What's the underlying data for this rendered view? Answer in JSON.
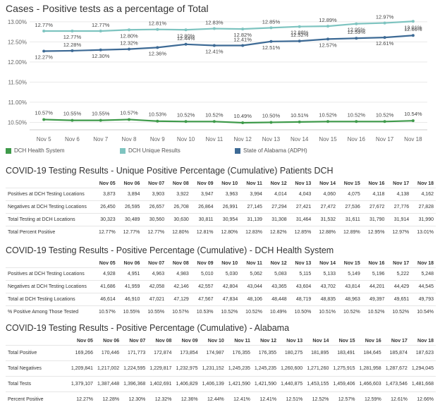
{
  "chart_data": {
    "type": "line",
    "title": "Cases - Positive tests as a percentage of Total",
    "x": [
      "Nov 5",
      "Nov 6",
      "Nov 7",
      "Nov 8",
      "Nov 9",
      "Nov 10",
      "Nov 11",
      "Nov 12",
      "Nov 13",
      "Nov 14",
      "Nov 15",
      "Nov 16",
      "Nov 17",
      "Nov 18"
    ],
    "yticks": [
      "13.00%",
      "12.50%",
      "12.00%",
      "11.50%",
      "11.00%",
      "10.50%"
    ],
    "ylim": [
      10.35,
      13.05
    ],
    "grid": true,
    "legend_position": "bottom",
    "series": [
      {
        "name": "DCH Health System",
        "color": "#3e9a4a",
        "values": [
          10.57,
          10.55,
          10.55,
          10.57,
          10.53,
          10.52,
          10.52,
          10.49,
          10.5,
          10.51,
          10.52,
          10.52,
          10.52,
          10.54
        ],
        "labels": [
          "10.57%",
          "10.55%",
          "10.55%",
          "10.57%",
          "10.53%",
          "10.52%",
          "10.52%",
          "10.49%",
          "10.50%",
          "10.51%",
          "10.52%",
          "10.52%",
          "10.52%",
          "10.54%"
        ]
      },
      {
        "name": "DCH Unique Results",
        "color": "#7ec4c0",
        "values": [
          12.77,
          12.77,
          12.77,
          12.8,
          12.81,
          12.8,
          12.83,
          12.82,
          12.85,
          12.88,
          12.89,
          12.95,
          12.97,
          13.01
        ],
        "labels": [
          "12.77%",
          "12.77%",
          "12.77%",
          "12.80%",
          "12.81%",
          "12.80%",
          "12.83%",
          "12.82%",
          "12.85%",
          "12.88%",
          "12.89%",
          "12.95%",
          "12.97%",
          "13.01%"
        ]
      },
      {
        "name": "State of Alabama (ADPH)",
        "color": "#3d6a95",
        "values": [
          12.27,
          12.28,
          12.3,
          12.32,
          12.36,
          12.44,
          12.41,
          12.41,
          12.51,
          12.52,
          12.57,
          12.59,
          12.61,
          12.66
        ],
        "labels": [
          "12.27%",
          "12.28%",
          "12.30%",
          "12.32%",
          "12.36%",
          "12.44%",
          "12.41%",
          "12.41%",
          "12.51%",
          "12.52%",
          "12.57%",
          "12.59%",
          "12.61%",
          "12.66%"
        ]
      }
    ]
  },
  "tables": [
    {
      "title": "COVID-19 Testing Results - Unique Positive Percentage (Cumulative) Patients DCH",
      "columns": [
        "Nov 05",
        "Nov 06",
        "Nov 07",
        "Nov 08",
        "Nov 09",
        "Nov 10",
        "Nov 11",
        "Nov 12",
        "Nov 13",
        "Nov 14",
        "Nov 15",
        "Nov 16",
        "Nov 17",
        "Nov 18"
      ],
      "rows": [
        {
          "label": "Positives at DCH Testing Locations",
          "values": [
            "3,873",
            "3,894",
            "3,903",
            "3,922",
            "3,947",
            "3,963",
            "3,994",
            "4,014",
            "4,043",
            "4,060",
            "4,075",
            "4,118",
            "4,138",
            "4,162"
          ]
        },
        {
          "label": "Negatives at DCH Testing Locations",
          "values": [
            "26,450",
            "26,595",
            "26,657",
            "26,708",
            "26,864",
            "26,991",
            "27,145",
            "27,294",
            "27,421",
            "27,472",
            "27,536",
            "27,672",
            "27,776",
            "27,828"
          ]
        },
        {
          "label": "Total Testing at DCH Locations",
          "values": [
            "30,323",
            "30,489",
            "30,560",
            "30,630",
            "30,811",
            "30,954",
            "31,139",
            "31,308",
            "31,464",
            "31,532",
            "31,611",
            "31,790",
            "31,914",
            "31,990"
          ]
        },
        {
          "label": "Total Percent Positive",
          "values": [
            "12.77%",
            "12.77%",
            "12.77%",
            "12.80%",
            "12.81%",
            "12.80%",
            "12.83%",
            "12.82%",
            "12.85%",
            "12.88%",
            "12.89%",
            "12.95%",
            "12.97%",
            "13.01%"
          ]
        }
      ]
    },
    {
      "title": "COVID-19 Testing Results - Positive Percentage (Cumulative) - DCH Health System",
      "columns": [
        "Nov 05",
        "Nov 06",
        "Nov 07",
        "Nov 08",
        "Nov 09",
        "Nov 10",
        "Nov 11",
        "Nov 12",
        "Nov 13",
        "Nov 14",
        "Nov 15",
        "Nov 16",
        "Nov 17",
        "Nov 18"
      ],
      "rows": [
        {
          "label": "Positives at DCH Testing Locations",
          "values": [
            "4,928",
            "4,951",
            "4,963",
            "4,983",
            "5,010",
            "5,030",
            "5,062",
            "5,083",
            "5,115",
            "5,133",
            "5,149",
            "5,196",
            "5,222",
            "5,248"
          ]
        },
        {
          "label": "Negatives at DCH Testing Locations",
          "values": [
            "41,686",
            "41,959",
            "42,058",
            "42,146",
            "42,557",
            "42,804",
            "43,044",
            "43,365",
            "43,604",
            "43,702",
            "43,814",
            "44,201",
            "44,429",
            "44,545"
          ]
        },
        {
          "label": "Total at DCH Testing Locations",
          "values": [
            "46,614",
            "46,910",
            "47,021",
            "47,129",
            "47,567",
            "47,834",
            "48,106",
            "48,448",
            "48,719",
            "48,835",
            "48,963",
            "49,397",
            "49,651",
            "49,793"
          ]
        },
        {
          "label": "% Positive Among Those Tested",
          "values": [
            "10.57%",
            "10.55%",
            "10.55%",
            "10.57%",
            "10.53%",
            "10.52%",
            "10.52%",
            "10.49%",
            "10.50%",
            "10.51%",
            "10.52%",
            "10.52%",
            "10.52%",
            "10.54%"
          ]
        }
      ]
    },
    {
      "title": "COVID-19 Testing Results - Positive Percentage (Cumulative) - Alabama",
      "columns": [
        "Nov 05",
        "Nov 06",
        "Nov 07",
        "Nov 08",
        "Nov 09",
        "Nov 10",
        "Nov 11",
        "Nov 12",
        "Nov 13",
        "Nov 14",
        "Nov 15",
        "Nov 16",
        "Nov 17",
        "Nov 18"
      ],
      "rows": [
        {
          "label": "Total Positive",
          "values": [
            "169,266",
            "170,446",
            "171,773",
            "172,874",
            "173,854",
            "174,987",
            "176,355",
            "176,355",
            "180,275",
            "181,895",
            "183,491",
            "184,645",
            "185,874",
            "187,623"
          ]
        },
        {
          "label": "Total Negatives",
          "values": [
            "1,209,841",
            "1,217,002",
            "1,224,595",
            "1,229,817",
            "1,232,975",
            "1,231,152",
            "1,245,235",
            "1,245,235",
            "1,260,600",
            "1,271,260",
            "1,275,915",
            "1,281,958",
            "1,287,672",
            "1,294,045"
          ]
        },
        {
          "label": "Total Tests",
          "values": [
            "1,379,107",
            "1,387,448",
            "1,396,368",
            "1,402,691",
            "1,406,829",
            "1,406,139",
            "1,421,590",
            "1,421,590",
            "1,440,875",
            "1,453,155",
            "1,459,406",
            "1,466,603",
            "1,473,546",
            "1,481,668"
          ]
        },
        {
          "label": "Percent Positive",
          "values": [
            "12.27%",
            "12.28%",
            "12.30%",
            "12.32%",
            "12.36%",
            "12.44%",
            "12.41%",
            "12.41%",
            "12.51%",
            "12.52%",
            "12.57%",
            "12.59%",
            "12.61%",
            "12.66%"
          ]
        }
      ]
    }
  ]
}
